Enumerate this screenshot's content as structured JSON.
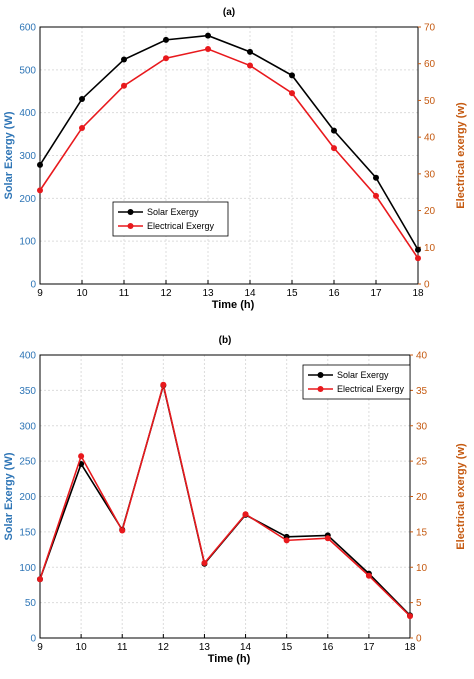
{
  "chart_data": [
    {
      "type": "line",
      "panel_label": "(a)",
      "xlabel": "Time (h)",
      "ylabel": "Solar Exergy (W)",
      "ylabel_right": "Electrical exergy (w)",
      "x": [
        9,
        10,
        11,
        12,
        13,
        14,
        15,
        16,
        17,
        18
      ],
      "xticks": [
        "9",
        "10",
        "11",
        "12",
        "13",
        "14",
        "15",
        "16",
        "17",
        "18"
      ],
      "xlim": [
        9,
        18
      ],
      "ylim": [
        0,
        600
      ],
      "yticks": [
        "0",
        "100",
        "200",
        "300",
        "400",
        "500",
        "600"
      ],
      "ylim_right": [
        0,
        70
      ],
      "yticks_right": [
        "0",
        "10",
        "20",
        "30",
        "40",
        "50",
        "60",
        "70"
      ],
      "grid": true,
      "legend_position": "lower-left",
      "series": [
        {
          "name": "Solar Exergy",
          "axis": "left",
          "color": "#000000",
          "values": [
            278,
            432,
            524,
            570,
            580,
            542,
            487,
            358,
            248,
            80
          ]
        },
        {
          "name": "Electrical Exergy",
          "axis": "right",
          "color": "#e8191d",
          "values": [
            25.5,
            42.5,
            54,
            61.5,
            64,
            59.5,
            52,
            37,
            24,
            7
          ]
        }
      ]
    },
    {
      "type": "line",
      "panel_label": "(b)",
      "xlabel": "Time (h)",
      "ylabel": "Solar Exergy (W)",
      "ylabel_right": "Electrical exergy (w)",
      "x": [
        9,
        10,
        11,
        12,
        13,
        14,
        15,
        16,
        17,
        18
      ],
      "xticks": [
        "9",
        "10",
        "11",
        "12",
        "13",
        "14",
        "15",
        "16",
        "17",
        "18"
      ],
      "xlim": [
        9,
        18
      ],
      "ylim": [
        0,
        400
      ],
      "yticks": [
        "0",
        "50",
        "100",
        "150",
        "200",
        "250",
        "300",
        "350",
        "400"
      ],
      "ylim_right": [
        0,
        40
      ],
      "yticks_right": [
        "0",
        "5",
        "10",
        "15",
        "20",
        "25",
        "30",
        "35",
        "40"
      ],
      "grid": true,
      "legend_position": "top-right",
      "series": [
        {
          "name": "Solar Exergy",
          "axis": "left",
          "color": "#000000",
          "values": [
            83,
            246,
            153,
            357,
            105,
            174,
            143,
            145,
            91,
            32
          ]
        },
        {
          "name": "Electrical Exergy",
          "axis": "right",
          "color": "#e8191d",
          "values": [
            8.3,
            25.7,
            15.2,
            35.8,
            10.6,
            17.5,
            13.8,
            14.1,
            8.8,
            3.1
          ]
        }
      ]
    }
  ]
}
